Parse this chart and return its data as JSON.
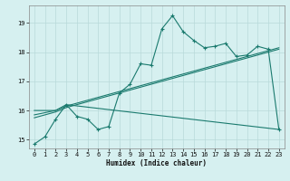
{
  "xlabel": "Humidex (Indice chaleur)",
  "bg_color": "#d6f0f0",
  "grid_color": "#b8dada",
  "line_color": "#1a7a6e",
  "xlim": [
    -0.5,
    23.5
  ],
  "ylim": [
    14.7,
    19.6
  ],
  "yticks": [
    15,
    16,
    17,
    18,
    19
  ],
  "xticks": [
    0,
    1,
    2,
    3,
    4,
    5,
    6,
    7,
    8,
    9,
    10,
    11,
    12,
    13,
    14,
    15,
    16,
    17,
    18,
    19,
    20,
    21,
    22,
    23
  ],
  "line1_x": [
    0,
    1,
    2,
    3,
    4,
    5,
    6,
    7,
    8,
    9,
    10,
    11,
    12,
    13,
    14,
    15,
    16,
    17,
    18,
    19,
    20,
    21,
    22,
    23
  ],
  "line1_y": [
    14.85,
    15.1,
    15.7,
    16.2,
    15.8,
    15.7,
    15.35,
    15.45,
    16.6,
    16.9,
    17.6,
    17.55,
    18.8,
    19.25,
    18.7,
    18.4,
    18.15,
    18.2,
    18.3,
    17.85,
    17.9,
    18.2,
    18.1,
    15.35
  ],
  "line2_x": [
    0,
    2,
    3,
    23
  ],
  "line2_y": [
    15.75,
    15.95,
    16.1,
    18.1
  ],
  "line3_x": [
    0,
    2,
    3,
    23
  ],
  "line3_y": [
    15.85,
    16.0,
    16.15,
    18.15
  ],
  "line4_x": [
    0,
    2,
    3,
    23
  ],
  "line4_y": [
    16.0,
    16.0,
    16.2,
    15.35
  ]
}
